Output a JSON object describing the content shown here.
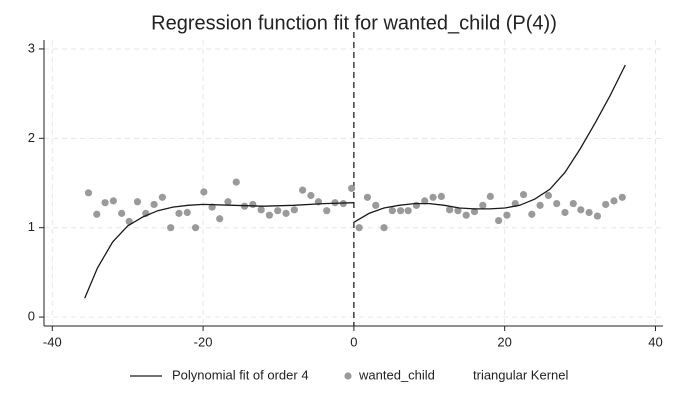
{
  "chart_data": {
    "type": "scatter",
    "title": "Regression function fit for wanted_child (P(4))",
    "xlim": [
      -41.1,
      41
    ],
    "xticks": [
      -40,
      -20,
      0,
      20,
      40
    ],
    "ylim": [
      -0.1,
      3.1
    ],
    "yticks": [
      0,
      1,
      2,
      3
    ],
    "grid": true,
    "cutoff": 0,
    "series": [
      {
        "name": "Polynomial fit of order 4",
        "style": "line",
        "color": "#1a1a1a",
        "x": [
          -35.7,
          -34,
          -32,
          -30,
          -28,
          -26,
          -24,
          -22,
          -20,
          -16,
          -12,
          -8,
          -4,
          0,
          0,
          0,
          2,
          4,
          6,
          8,
          10,
          12,
          14,
          16,
          18,
          20,
          22,
          24,
          26,
          28,
          30,
          32,
          34,
          36
        ],
        "values": [
          0.21,
          0.55,
          0.84,
          1.02,
          1.12,
          1.19,
          1.23,
          1.25,
          1.26,
          1.25,
          1.24,
          1.25,
          1.27,
          1.28,
          null,
          1.06,
          1.16,
          1.22,
          1.25,
          1.27,
          1.27,
          1.25,
          1.22,
          1.21,
          1.21,
          1.22,
          1.25,
          1.32,
          1.43,
          1.62,
          1.88,
          2.17,
          2.48,
          2.82
        ]
      },
      {
        "name": "wanted_child",
        "style": "markers",
        "color": "#9a9a9a",
        "x": [
          -35.2,
          -34.1,
          -33.0,
          -31.9,
          -30.8,
          -29.8,
          -28.7,
          -27.6,
          -26.5,
          -25.4,
          -24.3,
          -23.2,
          -22.1,
          -21.0,
          -19.9,
          -18.8,
          -17.8,
          -16.7,
          -15.6,
          -14.5,
          -13.4,
          -12.3,
          -11.2,
          -10.1,
          -9.0,
          -7.9,
          -6.8,
          -5.7,
          -4.7,
          -3.6,
          -2.5,
          -1.4,
          -0.3,
          0.7,
          1.8,
          2.9,
          4.0,
          5.1,
          6.2,
          7.2,
          8.3,
          9.4,
          10.5,
          11.6,
          12.7,
          13.8,
          14.9,
          16.0,
          17.1,
          18.1,
          19.2,
          20.3,
          21.4,
          22.5,
          23.6,
          24.7,
          25.8,
          26.9,
          28.0,
          29.1,
          30.1,
          31.2,
          32.3,
          33.4,
          34.5,
          35.6
        ],
        "values": [
          1.39,
          1.15,
          1.28,
          1.3,
          1.16,
          1.07,
          1.29,
          1.16,
          1.26,
          1.34,
          1.0,
          1.16,
          1.17,
          1.0,
          1.4,
          1.23,
          1.1,
          1.29,
          1.51,
          1.24,
          1.26,
          1.2,
          1.14,
          1.19,
          1.16,
          1.2,
          1.42,
          1.36,
          1.29,
          1.19,
          1.28,
          1.27,
          1.44,
          1.0,
          1.34,
          1.25,
          1.0,
          1.19,
          1.19,
          1.19,
          1.25,
          1.3,
          1.34,
          1.35,
          1.2,
          1.19,
          1.14,
          1.18,
          1.25,
          1.35,
          1.08,
          1.14,
          1.27,
          1.37,
          1.15,
          1.25,
          1.36,
          1.27,
          1.17,
          1.27,
          1.2,
          1.17,
          1.13,
          1.26,
          1.3,
          1.34
        ]
      }
    ],
    "legend_note": "triangular Kernel"
  }
}
